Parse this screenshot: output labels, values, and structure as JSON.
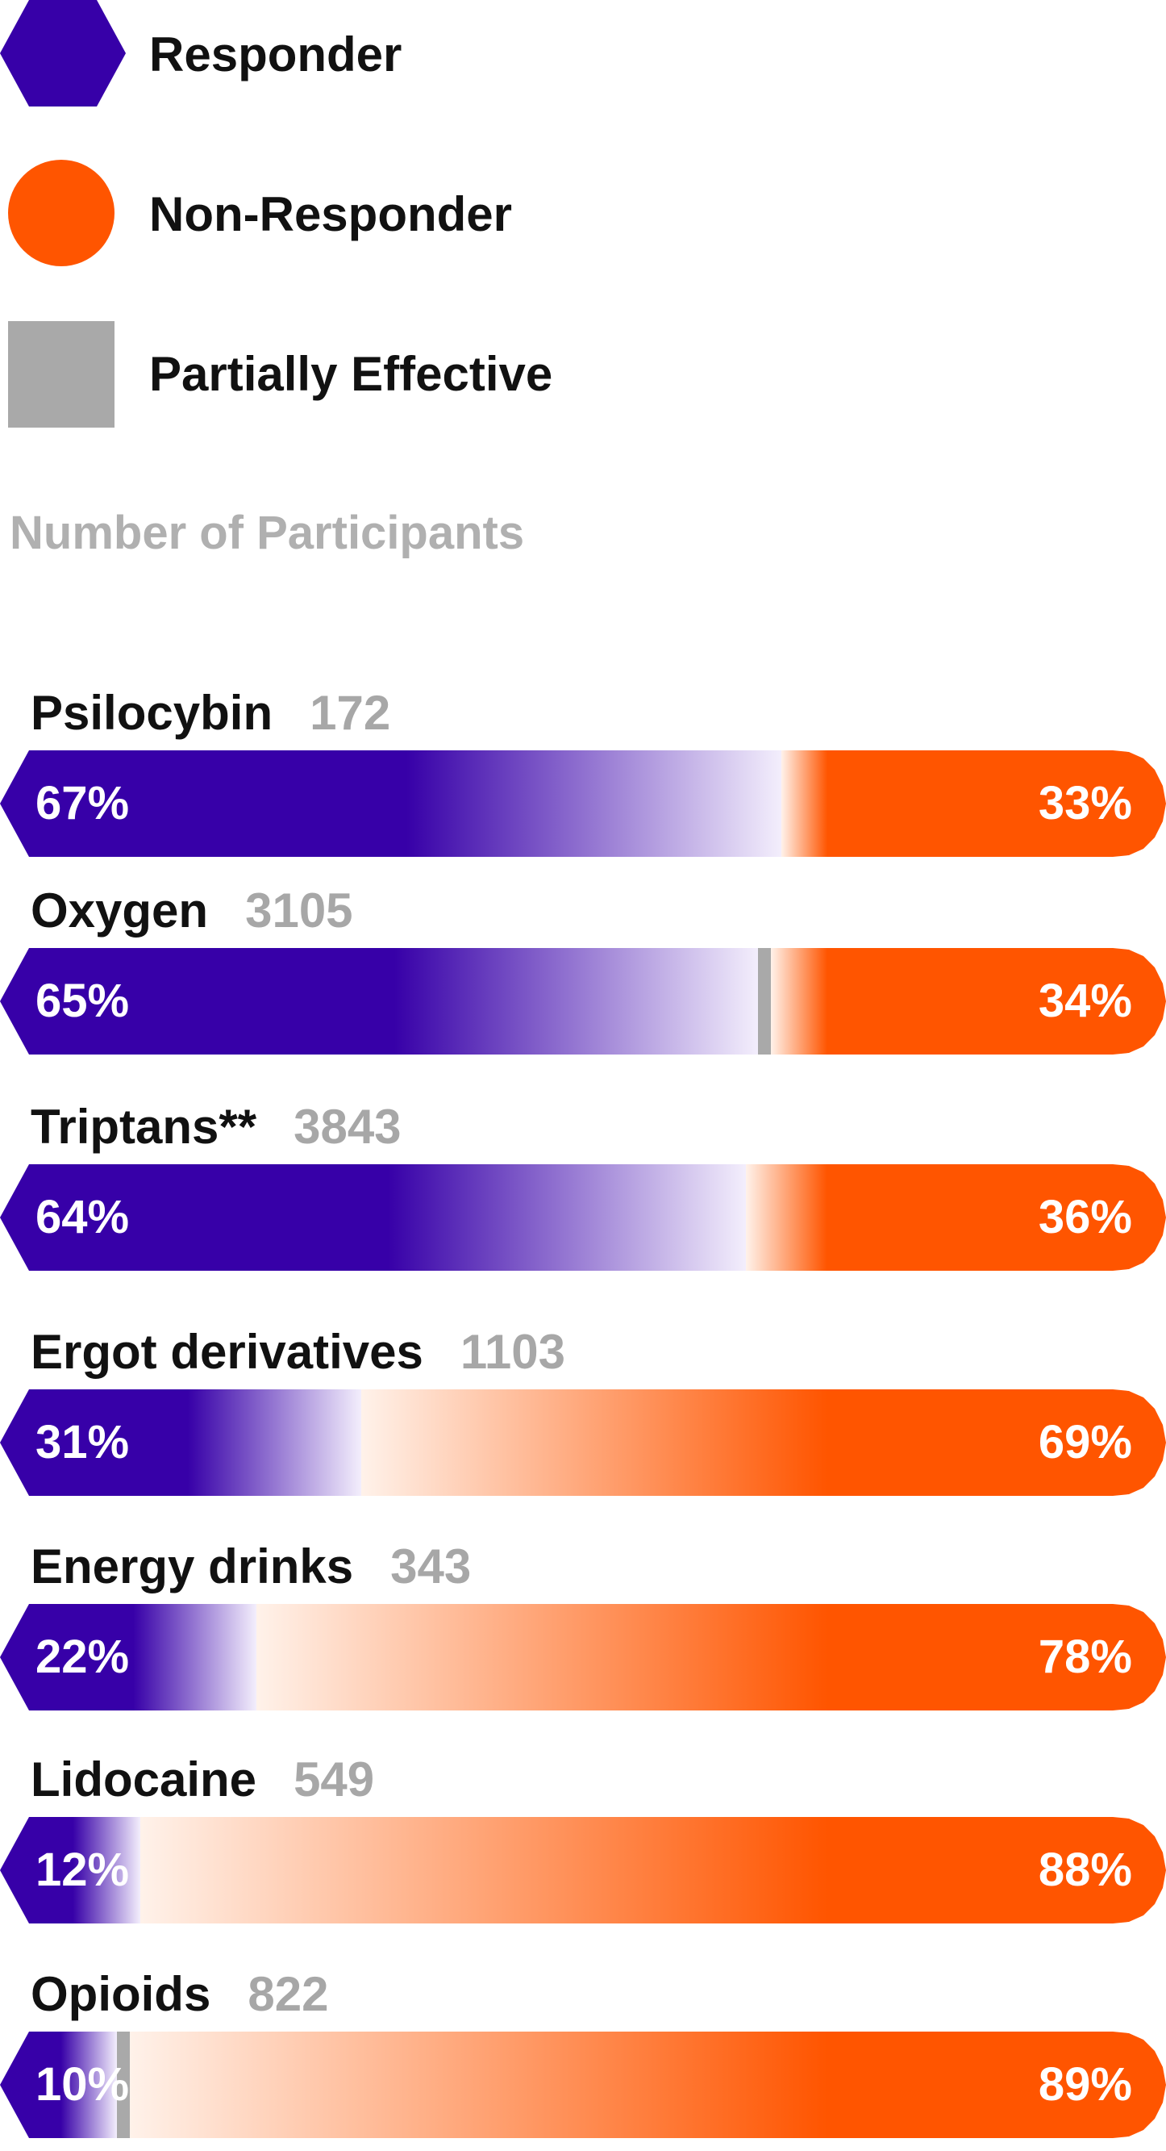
{
  "legend": {
    "items": [
      {
        "label": "Responder",
        "shape": "hexagon",
        "color": "#3700a8"
      },
      {
        "label": "Non-Responder",
        "shape": "circle",
        "color": "#ff5500"
      },
      {
        "label": "Partially Effective",
        "shape": "square",
        "color": "#a9a9a9"
      }
    ],
    "subtitle": "Number of Participants",
    "subtitle_color": "#b0b0b0"
  },
  "chart_data": {
    "type": "bar",
    "orientation": "horizontal",
    "stacked": true,
    "xlim": [
      0,
      100
    ],
    "unit": "%",
    "categories": [
      "Psilocybin",
      "Oxygen",
      "Triptans**",
      "Ergot derivatives",
      "Energy drinks",
      "Lidocaine",
      "Opioids"
    ],
    "participants": [
      "172",
      "3105",
      "3843",
      "1103",
      "343",
      "549",
      "822"
    ],
    "series": [
      {
        "name": "Responder",
        "color": "#3700a8",
        "values": [
          67,
          65,
          64,
          31,
          22,
          12,
          10
        ],
        "labels": [
          "67%",
          "65%",
          "64%",
          "31%",
          "22%",
          "12%",
          "10%"
        ]
      },
      {
        "name": "Partially Effective",
        "color": "#a9a9a9",
        "values": [
          0,
          1,
          0,
          0,
          0,
          0,
          1
        ]
      },
      {
        "name": "Non-Responder",
        "color": "#ff5500",
        "values": [
          33,
          34,
          36,
          69,
          78,
          88,
          89
        ],
        "labels": [
          "33%",
          "34%",
          "36%",
          "69%",
          "78%",
          "88%",
          "89%"
        ]
      }
    ]
  }
}
